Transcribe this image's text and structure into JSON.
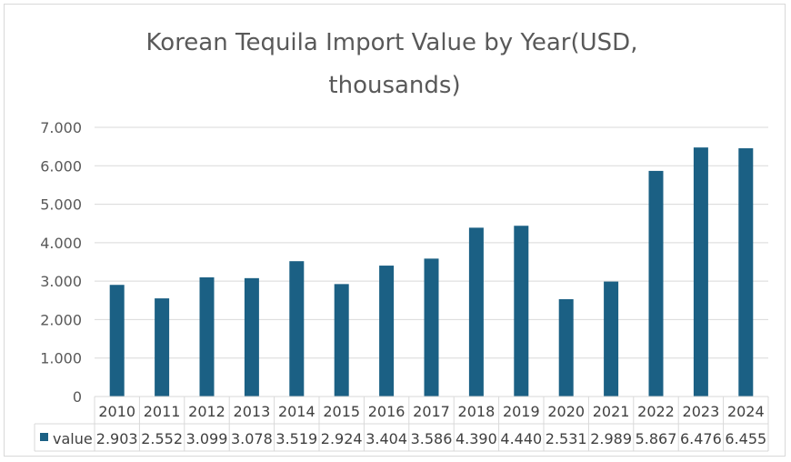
{
  "chart_data": {
    "type": "bar",
    "title_line1": "Korean Tequila Import Value by Year(USD,",
    "title_line2": "thousands)",
    "categories": [
      "2010",
      "2011",
      "2012",
      "2013",
      "2014",
      "2015",
      "2016",
      "2017",
      "2018",
      "2019",
      "2020",
      "2021",
      "2022",
      "2023",
      "2024"
    ],
    "series": [
      {
        "name": "value",
        "values": [
          2.903,
          2.552,
          3.099,
          3.078,
          3.519,
          2.924,
          3.404,
          3.586,
          4.39,
          4.44,
          2.531,
          2.989,
          5.867,
          6.476,
          6.455
        ],
        "labels": [
          "2.903",
          "2.552",
          "3.099",
          "3.078",
          "3.519",
          "2.924",
          "3.404",
          "3.586",
          "4.390",
          "4.440",
          "2.531",
          "2.989",
          "5.867",
          "6.476",
          "6.455"
        ],
        "color": "#1b6084"
      }
    ],
    "ylim": [
      0,
      7
    ],
    "yticks": [
      0,
      1,
      2,
      3,
      4,
      5,
      6,
      7
    ],
    "ytick_labels": [
      "0",
      "1.000",
      "2.000",
      "3.000",
      "4.000",
      "5.000",
      "6.000",
      "7.000"
    ],
    "grid": true,
    "legend": "data-table",
    "gridline_color": "#d9d9d9"
  }
}
